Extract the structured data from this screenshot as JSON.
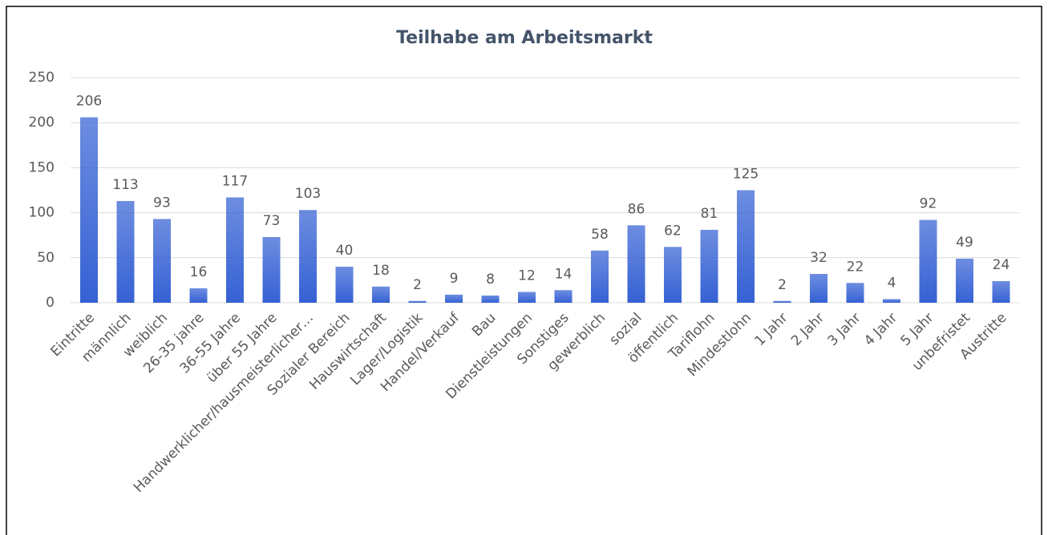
{
  "chart_data": {
    "type": "bar",
    "title": "Teilhabe am Arbeitsmarkt",
    "categories": [
      "Eintritte",
      "männlich",
      "weiblich",
      "26-35 jahre",
      "36-55 Jahre",
      "über 55 Jahre",
      "Handwerklicher/hausmeisterlicher…",
      "Sozialer Bereich",
      "Hauswirtschaft",
      "Lager/Logistik",
      "Handel/Verkauf",
      "Bau",
      "Dienstleistungen",
      "Sonstiges",
      "gewerblich",
      "sozial",
      "öffentlich",
      "Tariflohn",
      "Mindestlohn",
      "1 Jahr",
      "2 Jahr",
      "3 Jahr",
      "4 Jahr",
      "5 Jahr",
      "unbefristet",
      "Austritte"
    ],
    "values": [
      206,
      113,
      93,
      16,
      117,
      73,
      103,
      40,
      18,
      2,
      9,
      8,
      12,
      14,
      58,
      86,
      62,
      81,
      125,
      2,
      32,
      22,
      4,
      92,
      49,
      24
    ],
    "color": "#3561d4",
    "ylim": [
      0,
      250
    ],
    "yticks": [
      0,
      50,
      100,
      150,
      200,
      250
    ],
    "grid": true
  }
}
